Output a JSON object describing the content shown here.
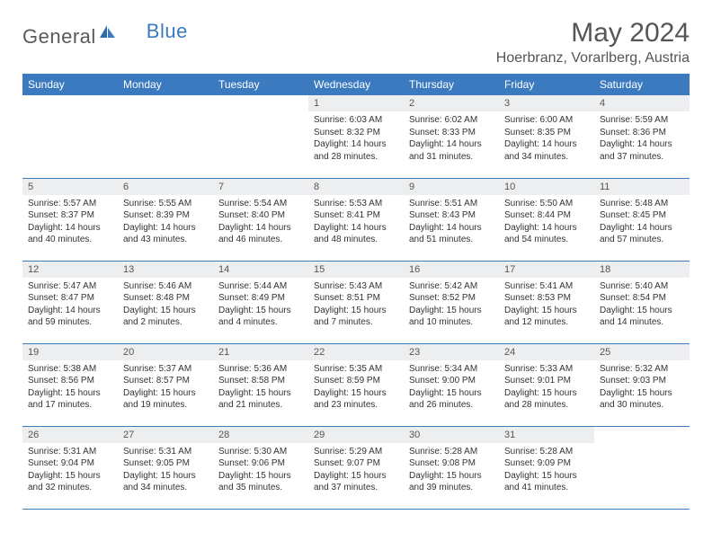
{
  "brand": {
    "part1": "General",
    "part2": "Blue"
  },
  "title": "May 2024",
  "location": "Hoerbranz, Vorarlberg, Austria",
  "colors": {
    "header_bg": "#3b7abf",
    "header_text": "#ffffff",
    "daynum_bg": "#eceef0",
    "text": "#333333",
    "border": "#3b7abf"
  },
  "weekdays": [
    "Sunday",
    "Monday",
    "Tuesday",
    "Wednesday",
    "Thursday",
    "Friday",
    "Saturday"
  ],
  "weeks": [
    [
      null,
      null,
      null,
      {
        "n": "1",
        "sr": "6:03 AM",
        "ss": "8:32 PM",
        "dl": "14 hours and 28 minutes."
      },
      {
        "n": "2",
        "sr": "6:02 AM",
        "ss": "8:33 PM",
        "dl": "14 hours and 31 minutes."
      },
      {
        "n": "3",
        "sr": "6:00 AM",
        "ss": "8:35 PM",
        "dl": "14 hours and 34 minutes."
      },
      {
        "n": "4",
        "sr": "5:59 AM",
        "ss": "8:36 PM",
        "dl": "14 hours and 37 minutes."
      }
    ],
    [
      {
        "n": "5",
        "sr": "5:57 AM",
        "ss": "8:37 PM",
        "dl": "14 hours and 40 minutes."
      },
      {
        "n": "6",
        "sr": "5:55 AM",
        "ss": "8:39 PM",
        "dl": "14 hours and 43 minutes."
      },
      {
        "n": "7",
        "sr": "5:54 AM",
        "ss": "8:40 PM",
        "dl": "14 hours and 46 minutes."
      },
      {
        "n": "8",
        "sr": "5:53 AM",
        "ss": "8:41 PM",
        "dl": "14 hours and 48 minutes."
      },
      {
        "n": "9",
        "sr": "5:51 AM",
        "ss": "8:43 PM",
        "dl": "14 hours and 51 minutes."
      },
      {
        "n": "10",
        "sr": "5:50 AM",
        "ss": "8:44 PM",
        "dl": "14 hours and 54 minutes."
      },
      {
        "n": "11",
        "sr": "5:48 AM",
        "ss": "8:45 PM",
        "dl": "14 hours and 57 minutes."
      }
    ],
    [
      {
        "n": "12",
        "sr": "5:47 AM",
        "ss": "8:47 PM",
        "dl": "14 hours and 59 minutes."
      },
      {
        "n": "13",
        "sr": "5:46 AM",
        "ss": "8:48 PM",
        "dl": "15 hours and 2 minutes."
      },
      {
        "n": "14",
        "sr": "5:44 AM",
        "ss": "8:49 PM",
        "dl": "15 hours and 4 minutes."
      },
      {
        "n": "15",
        "sr": "5:43 AM",
        "ss": "8:51 PM",
        "dl": "15 hours and 7 minutes."
      },
      {
        "n": "16",
        "sr": "5:42 AM",
        "ss": "8:52 PM",
        "dl": "15 hours and 10 minutes."
      },
      {
        "n": "17",
        "sr": "5:41 AM",
        "ss": "8:53 PM",
        "dl": "15 hours and 12 minutes."
      },
      {
        "n": "18",
        "sr": "5:40 AM",
        "ss": "8:54 PM",
        "dl": "15 hours and 14 minutes."
      }
    ],
    [
      {
        "n": "19",
        "sr": "5:38 AM",
        "ss": "8:56 PM",
        "dl": "15 hours and 17 minutes."
      },
      {
        "n": "20",
        "sr": "5:37 AM",
        "ss": "8:57 PM",
        "dl": "15 hours and 19 minutes."
      },
      {
        "n": "21",
        "sr": "5:36 AM",
        "ss": "8:58 PM",
        "dl": "15 hours and 21 minutes."
      },
      {
        "n": "22",
        "sr": "5:35 AM",
        "ss": "8:59 PM",
        "dl": "15 hours and 23 minutes."
      },
      {
        "n": "23",
        "sr": "5:34 AM",
        "ss": "9:00 PM",
        "dl": "15 hours and 26 minutes."
      },
      {
        "n": "24",
        "sr": "5:33 AM",
        "ss": "9:01 PM",
        "dl": "15 hours and 28 minutes."
      },
      {
        "n": "25",
        "sr": "5:32 AM",
        "ss": "9:03 PM",
        "dl": "15 hours and 30 minutes."
      }
    ],
    [
      {
        "n": "26",
        "sr": "5:31 AM",
        "ss": "9:04 PM",
        "dl": "15 hours and 32 minutes."
      },
      {
        "n": "27",
        "sr": "5:31 AM",
        "ss": "9:05 PM",
        "dl": "15 hours and 34 minutes."
      },
      {
        "n": "28",
        "sr": "5:30 AM",
        "ss": "9:06 PM",
        "dl": "15 hours and 35 minutes."
      },
      {
        "n": "29",
        "sr": "5:29 AM",
        "ss": "9:07 PM",
        "dl": "15 hours and 37 minutes."
      },
      {
        "n": "30",
        "sr": "5:28 AM",
        "ss": "9:08 PM",
        "dl": "15 hours and 39 minutes."
      },
      {
        "n": "31",
        "sr": "5:28 AM",
        "ss": "9:09 PM",
        "dl": "15 hours and 41 minutes."
      },
      null
    ]
  ],
  "labels": {
    "sunrise": "Sunrise:",
    "sunset": "Sunset:",
    "daylight": "Daylight:"
  }
}
